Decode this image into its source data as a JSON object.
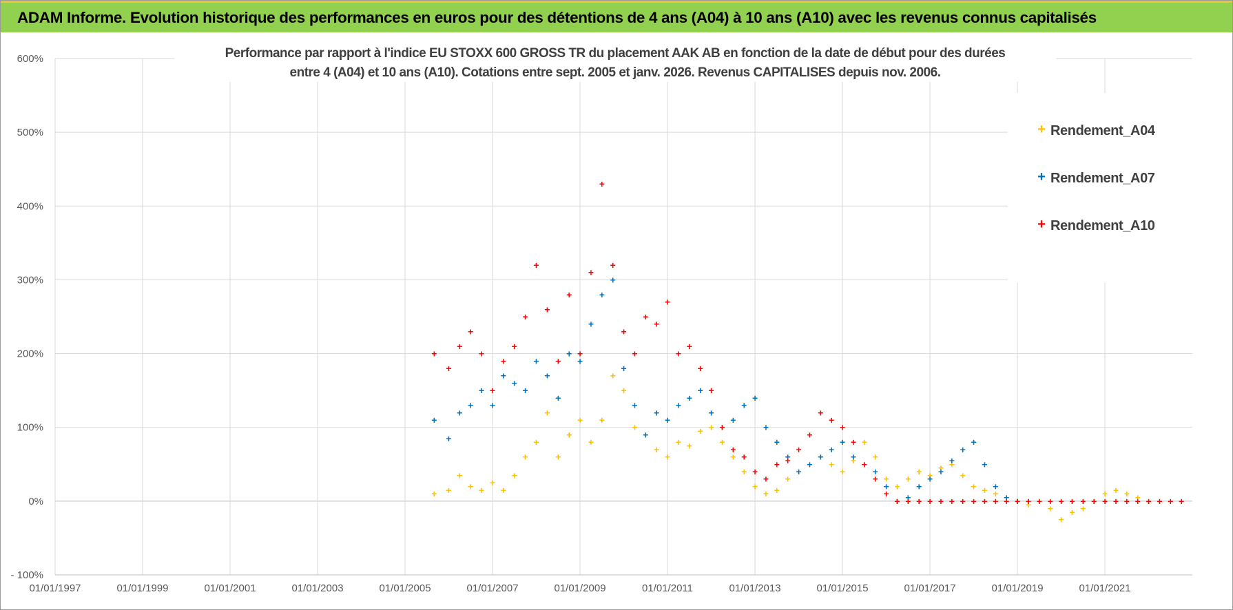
{
  "header": {
    "title": "ADAM Informe. Evolution historique des performances en euros pour des détentions de 4 ans (A04) à 10 ans (A10) avec les revenus connus capitalisés"
  },
  "chart_data": {
    "type": "scatter",
    "title_line1": "Performance par rapport à l'indice EU STOXX 600 GROSS TR  du placement AAK AB en fonction de la date de début pour des durées",
    "title_line2": "entre 4 (A04) et 10 ans (A10).  Cotations entre sept. 2005 et janv. 2026. Revenus CAPITALISES depuis nov. 2006.",
    "x_axis": {
      "type": "date",
      "range": [
        "1997-01-01",
        "2022-12-31"
      ],
      "tick_labels": [
        "01/01/1997",
        "01/01/1999",
        "01/01/2001",
        "01/01/2003",
        "01/01/2005",
        "01/01/2007",
        "01/01/2009",
        "01/01/2011",
        "01/01/2013",
        "01/01/2015",
        "01/01/2017",
        "01/01/2019",
        "01/01/2021"
      ]
    },
    "y_axis": {
      "format": "percent",
      "range": [
        -100,
        600
      ],
      "tick_labels": [
        "600%",
        "500%",
        "400%",
        "300%",
        "200%",
        "100%",
        "0%",
        "- 100%"
      ]
    },
    "grid": true,
    "legend_position": "top-right",
    "series": [
      {
        "name": "Rendement_A04",
        "color": "#ffc000",
        "x": [
          "2005-09",
          "2006-01",
          "2006-04",
          "2006-07",
          "2006-10",
          "2007-01",
          "2007-04",
          "2007-07",
          "2007-10",
          "2008-01",
          "2008-04",
          "2008-07",
          "2008-10",
          "2009-01",
          "2009-04",
          "2009-07",
          "2009-10",
          "2010-01",
          "2010-04",
          "2010-07",
          "2010-10",
          "2011-01",
          "2011-04",
          "2011-07",
          "2011-10",
          "2012-01",
          "2012-04",
          "2012-07",
          "2012-10",
          "2013-01",
          "2013-04",
          "2013-07",
          "2013-10",
          "2014-01",
          "2014-04",
          "2014-07",
          "2014-10",
          "2015-01",
          "2015-04",
          "2015-07",
          "2015-10",
          "2016-01",
          "2016-04",
          "2016-07",
          "2016-10",
          "2017-01",
          "2017-04",
          "2017-07",
          "2017-10",
          "2018-01",
          "2018-04",
          "2018-07",
          "2018-10",
          "2019-01",
          "2019-04",
          "2019-07",
          "2019-10",
          "2020-01",
          "2020-04",
          "2020-07",
          "2020-10",
          "2021-01",
          "2021-04",
          "2021-07",
          "2021-10",
          "2022-01"
        ],
        "y": [
          10,
          15,
          35,
          20,
          15,
          25,
          15,
          35,
          60,
          80,
          120,
          60,
          90,
          110,
          80,
          110,
          170,
          150,
          100,
          90,
          70,
          60,
          80,
          75,
          95,
          100,
          80,
          60,
          40,
          20,
          10,
          15,
          30,
          40,
          50,
          60,
          50,
          40,
          55,
          80,
          60,
          30,
          20,
          30,
          40,
          35,
          45,
          50,
          35,
          20,
          15,
          10,
          5,
          0,
          -5,
          0,
          -10,
          -25,
          -15,
          -10,
          0,
          10,
          15,
          10,
          5,
          0
        ]
      },
      {
        "name": "Rendement_A07",
        "color": "#0070c0",
        "x": [
          "2005-09",
          "2006-01",
          "2006-04",
          "2006-07",
          "2006-10",
          "2007-01",
          "2007-04",
          "2007-07",
          "2007-10",
          "2008-01",
          "2008-04",
          "2008-07",
          "2008-10",
          "2009-01",
          "2009-04",
          "2009-07",
          "2009-10",
          "2010-01",
          "2010-04",
          "2010-07",
          "2010-10",
          "2011-01",
          "2011-04",
          "2011-07",
          "2011-10",
          "2012-01",
          "2012-04",
          "2012-07",
          "2012-10",
          "2013-01",
          "2013-04",
          "2013-07",
          "2013-10",
          "2014-01",
          "2014-04",
          "2014-07",
          "2014-10",
          "2015-01",
          "2015-04",
          "2015-07",
          "2015-10",
          "2016-01",
          "2016-04",
          "2016-07",
          "2016-10",
          "2017-01",
          "2017-04",
          "2017-07",
          "2017-10",
          "2018-01",
          "2018-04",
          "2018-07",
          "2018-10",
          "2019-01",
          "2019-04"
        ],
        "y": [
          110,
          85,
          120,
          130,
          150,
          130,
          170,
          160,
          150,
          190,
          170,
          140,
          200,
          190,
          240,
          280,
          300,
          180,
          130,
          90,
          120,
          110,
          130,
          140,
          150,
          120,
          100,
          110,
          130,
          140,
          100,
          80,
          60,
          40,
          50,
          60,
          70,
          80,
          60,
          50,
          40,
          20,
          0,
          5,
          20,
          30,
          40,
          55,
          70,
          80,
          50,
          20,
          5,
          0,
          0
        ]
      },
      {
        "name": "Rendement_A10",
        "color": "#ff0000",
        "x": [
          "2005-09",
          "2006-01",
          "2006-04",
          "2006-07",
          "2006-10",
          "2007-01",
          "2007-04",
          "2007-07",
          "2007-10",
          "2008-01",
          "2008-04",
          "2008-07",
          "2008-10",
          "2009-01",
          "2009-04",
          "2009-07",
          "2009-10",
          "2010-01",
          "2010-04",
          "2010-07",
          "2010-10",
          "2011-01",
          "2011-04",
          "2011-07",
          "2011-10",
          "2012-01",
          "2012-04",
          "2012-07",
          "2012-10",
          "2013-01",
          "2013-04",
          "2013-07",
          "2013-10",
          "2014-01",
          "2014-04",
          "2014-07",
          "2014-10",
          "2015-01",
          "2015-04",
          "2015-07",
          "2015-10",
          "2016-01",
          "2016-04",
          "2016-07",
          "2016-10",
          "2017-01",
          "2017-04",
          "2017-07",
          "2017-10",
          "2018-01",
          "2018-04",
          "2018-07",
          "2018-10",
          "2019-01",
          "2019-04",
          "2019-07",
          "2019-10",
          "2020-01",
          "2020-04",
          "2020-07",
          "2020-10",
          "2021-01",
          "2021-04",
          "2021-07",
          "2021-10",
          "2022-01",
          "2022-04",
          "2022-07",
          "2022-10"
        ],
        "y": [
          200,
          180,
          210,
          230,
          200,
          150,
          190,
          210,
          250,
          320,
          260,
          190,
          280,
          200,
          310,
          430,
          320,
          230,
          200,
          250,
          240,
          270,
          200,
          210,
          180,
          150,
          100,
          70,
          60,
          40,
          30,
          50,
          55,
          70,
          90,
          120,
          110,
          100,
          80,
          50,
          30,
          10,
          0,
          0,
          0,
          0,
          0,
          0,
          0,
          0,
          0,
          0,
          0,
          0,
          0,
          0,
          0,
          0,
          0,
          0,
          0,
          0,
          0,
          0,
          0,
          0,
          0,
          0,
          0
        ]
      }
    ]
  }
}
